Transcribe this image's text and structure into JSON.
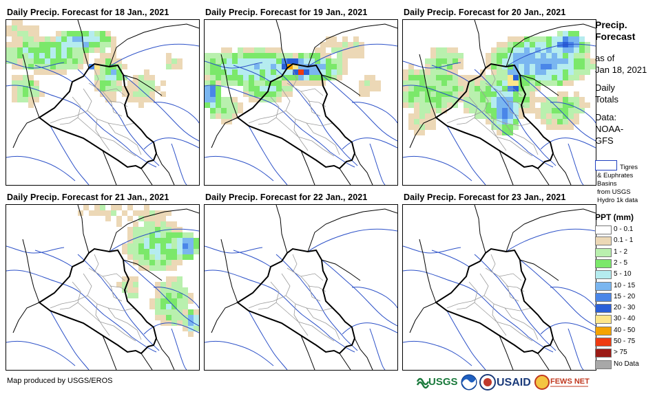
{
  "panels": [
    {
      "title": "Daily Precip. Forecast for 18 Jan., 2021",
      "day": 0
    },
    {
      "title": "Daily Precip. Forecast for 19 Jan., 2021",
      "day": 1
    },
    {
      "title": "Daily Precip. Forecast for 20 Jan., 2021",
      "day": 2
    },
    {
      "title": "Daily Precip. Forecast for 21 Jan., 2021",
      "day": 3
    },
    {
      "title": "Daily Precip. Forecast for 22 Jan., 2021",
      "day": 4
    },
    {
      "title": "Daily Precip. Forecast for 23 Jan., 2021",
      "day": 5
    }
  ],
  "sidebar": {
    "title_line1": "Precip.",
    "title_line2": "Forecast",
    "asof_line1": "as of",
    "asof_line2": "Jan 18, 2021",
    "totals_line1": "Daily",
    "totals_line2": "Totals",
    "data_line1": "Data:",
    "data_line2": "NOAA-",
    "data_line3": "GFS"
  },
  "basin_legend": {
    "line1": "Tigres",
    "line2": "& Euphrates",
    "line3": "Basins",
    "line4": "from USGS",
    "line5": "Hydro 1k data"
  },
  "legend": {
    "title": "PPT (mm)",
    "items": [
      {
        "label": "0 - 0.1",
        "color": "#ffffff"
      },
      {
        "label": "0.1 - 1",
        "color": "#ecd8b6"
      },
      {
        "label": "1 - 2",
        "color": "#b9f0ae"
      },
      {
        "label": "2 - 5",
        "color": "#7be86a"
      },
      {
        "label": "5 - 10",
        "color": "#b5ecef"
      },
      {
        "label": "10 - 15",
        "color": "#7ab6f0"
      },
      {
        "label": "15 - 20",
        "color": "#4a86e8"
      },
      {
        "label": "20 - 30",
        "color": "#2a5fd8"
      },
      {
        "label": "30 - 40",
        "color": "#fde68a"
      },
      {
        "label": "40 - 50",
        "color": "#f5a300"
      },
      {
        "label": "50 - 75",
        "color": "#ef3b10"
      },
      {
        "label": "> 75",
        "color": "#9b1b16"
      },
      {
        "label": "No Data",
        "color": "#a8a8a8"
      }
    ]
  },
  "credit": "Map produced by USGS/EROS",
  "logos": {
    "usgs": "USGS",
    "usaid": "USAID",
    "fews": "FEWS NET"
  }
}
